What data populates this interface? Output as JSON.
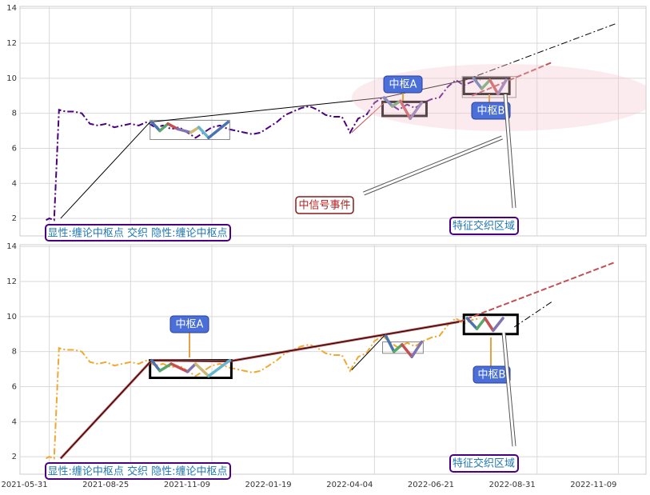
{
  "chart_data": [
    {
      "type": "line",
      "x": [
        -2,
        0,
        3,
        6,
        10,
        15,
        20,
        25,
        30,
        35,
        40,
        45,
        50,
        55,
        60,
        65,
        70,
        75,
        80,
        85,
        90,
        95,
        100,
        105,
        110,
        115,
        120,
        125,
        130,
        135,
        140,
        145,
        150,
        155,
        160,
        165,
        170,
        175,
        180,
        185,
        190,
        195,
        200,
        205,
        210,
        215,
        220,
        225,
        230,
        235,
        240,
        245,
        250,
        255,
        260,
        265
      ],
      "series": [
        {
          "color": "#4b0082",
          "dash": "dashdot",
          "values": [
            1.9,
            2.0,
            1.9,
            8.2,
            8.1,
            8.1,
            8.0,
            7.4,
            7.3,
            7.4,
            7.2,
            7.3,
            7.4,
            7.3,
            7.5,
            7.2,
            7.3,
            7.1,
            7.2,
            6.9,
            6.6,
            6.9,
            7.2,
            7.3,
            7.1,
            7.0,
            6.9,
            6.8,
            6.9,
            7.2,
            7.5,
            7.9,
            8.1,
            8.3,
            8.4,
            8.2,
            7.9,
            7.8,
            7.8,
            6.9,
            7.7,
            7.9,
            8.6,
            8.9,
            8.5,
            8.2,
            8.5,
            8.3,
            8.6,
            8.8,
            8.9,
            9.5,
            9.9,
            9.6,
            9.8,
            9.9
          ]
        }
      ],
      "xlim": [
        -18,
        367
      ],
      "xticks": [
        0,
        50,
        100,
        150,
        200,
        250,
        300,
        350
      ],
      "ylim": [
        1,
        14.1
      ],
      "yticks": [
        2,
        4,
        6,
        8,
        10,
        12,
        14
      ],
      "grid": true,
      "strokes": [
        {
          "x": [
            7,
            62,
            206,
            256
          ],
          "values": [
            2.0,
            7.5,
            8.9,
            9.9
          ],
          "color": "#000000",
          "width": 1,
          "dash": "solid"
        },
        {
          "x": [
            256,
            348
          ],
          "values": [
            9.9,
            13.1
          ],
          "color": "#000000",
          "width": 1,
          "dash": "dashdot"
        },
        {
          "x": [
            260,
            309
          ],
          "values": [
            9.0,
            10.9
          ],
          "color": "#c44e52",
          "width": 2,
          "dash": "dashed"
        },
        {
          "x": [
            186,
            206
          ],
          "values": [
            6.9,
            8.6
          ],
          "color": "#c44e52",
          "width": 1,
          "dash": "solid"
        }
      ],
      "zigzags": [
        {
          "x": [
            63,
            68,
            73,
            79,
            87,
            92,
            98,
            110
          ],
          "values": [
            7.5,
            7.0,
            7.4,
            7.1,
            6.9,
            7.2,
            6.6,
            7.5
          ]
        },
        {
          "x": [
            206,
            211,
            216,
            222,
            229
          ],
          "values": [
            8.9,
            8.4,
            8.7,
            7.7,
            8.6
          ]
        },
        {
          "x": [
            261,
            266,
            271,
            276,
            281
          ],
          "values": [
            10.0,
            9.4,
            9.9,
            9.1,
            9.9
          ]
        }
      ],
      "zigzag_colors": [
        "#4c72b0",
        "#55a868",
        "#c44e52",
        "#8172b2",
        "#ccb974",
        "#64b5cd"
      ],
      "boxes": [
        {
          "x": [
            62,
            111
          ],
          "y": [
            6.5,
            7.6
          ],
          "color": "#888888",
          "width": 1
        },
        {
          "x": [
            205,
            232
          ],
          "y": [
            7.85,
            8.65
          ],
          "color": "#000000",
          "width": 3
        },
        {
          "x": [
            254,
            287
          ],
          "y": [
            8.9,
            10.1
          ],
          "color": "#888888",
          "width": 1
        },
        {
          "x": [
            255,
            283
          ],
          "y": [
            9.1,
            10.0
          ],
          "color": "#000000",
          "width": 3
        }
      ],
      "annotations": [
        "中枢A",
        "中枢B",
        "中信号事件",
        "特征交织区域",
        "显性:缠论中枢点 交织 隐性:缠论中枢点"
      ]
    },
    {
      "type": "line",
      "x": [
        -2,
        0,
        3,
        6,
        10,
        15,
        20,
        25,
        30,
        35,
        40,
        45,
        50,
        55,
        60,
        65,
        70,
        75,
        80,
        85,
        90,
        95,
        100,
        105,
        110,
        115,
        120,
        125,
        130,
        135,
        140,
        145,
        150,
        155,
        160,
        165,
        170,
        175,
        180,
        185,
        190,
        195,
        200,
        205,
        210,
        215,
        220,
        225,
        230,
        235,
        240,
        245,
        250,
        255,
        260,
        265
      ],
      "series": [
        {
          "color": "#f0a830",
          "dash": "dashdot",
          "values": [
            1.9,
            2.0,
            1.9,
            8.2,
            8.1,
            8.1,
            8.0,
            7.4,
            7.3,
            7.4,
            7.2,
            7.3,
            7.4,
            7.3,
            7.5,
            7.2,
            7.3,
            7.1,
            7.2,
            6.9,
            6.6,
            6.9,
            7.2,
            7.3,
            7.1,
            7.0,
            6.9,
            6.8,
            6.9,
            7.2,
            7.5,
            7.9,
            8.1,
            8.3,
            8.4,
            8.2,
            7.9,
            7.8,
            7.8,
            6.9,
            7.7,
            7.9,
            8.6,
            8.9,
            8.5,
            8.2,
            8.5,
            8.3,
            8.6,
            8.8,
            8.9,
            9.5,
            9.9,
            9.6,
            9.8,
            9.9
          ]
        }
      ],
      "xlim": [
        -18,
        367
      ],
      "xticks": [
        {
          "value": 0,
          "label": "2021-05-31"
        },
        {
          "value": 50,
          "label": "2021-08-25"
        },
        {
          "value": 100,
          "label": "2021-11-09"
        },
        {
          "value": 150,
          "label": "2022-01-19"
        },
        {
          "value": 200,
          "label": "2022-04-04"
        },
        {
          "value": 250,
          "label": "2022-06-21"
        },
        {
          "value": 300,
          "label": "2022-08-31"
        },
        {
          "value": 350,
          "label": "2022-11-09"
        }
      ],
      "ylim": [
        1,
        14.1
      ],
      "yticks": [
        2,
        4,
        6,
        8,
        10,
        12,
        14
      ],
      "grid": true,
      "strokes": [
        {
          "x": [
            7,
            63,
            111,
            252
          ],
          "values": [
            1.9,
            7.5,
            7.45,
            9.7
          ],
          "color": "#c44e52",
          "width": 3,
          "dash": "solid"
        },
        {
          "x": [
            7,
            63,
            111,
            252
          ],
          "values": [
            1.9,
            7.5,
            7.45,
            9.7
          ],
          "color": "#000000",
          "width": 1,
          "dash": "solid"
        },
        {
          "x": [
            252,
            348
          ],
          "values": [
            9.7,
            13.1
          ],
          "color": "#c44e52",
          "width": 2,
          "dash": "dashed"
        },
        {
          "x": [
            286,
            310
          ],
          "values": [
            9.4,
            10.9
          ],
          "color": "#000000",
          "width": 1,
          "dash": "dashdot"
        },
        {
          "x": [
            186,
            206
          ],
          "values": [
            6.95,
            8.9
          ],
          "color": "#000000",
          "width": 1,
          "dash": "solid"
        }
      ],
      "zigzags": [
        {
          "x": [
            63,
            68,
            75,
            85,
            90,
            98,
            111
          ],
          "values": [
            7.5,
            6.9,
            7.3,
            6.85,
            7.3,
            6.6,
            7.5
          ]
        },
        {
          "x": [
            207,
            212,
            217,
            223,
            229
          ],
          "values": [
            8.9,
            8.0,
            8.4,
            7.7,
            8.55
          ]
        },
        {
          "x": [
            257,
            263,
            268,
            273,
            279
          ],
          "values": [
            9.9,
            9.3,
            9.9,
            9.2,
            9.9
          ]
        }
      ],
      "zigzag_colors": [
        "#4c72b0",
        "#55a868",
        "#c44e52",
        "#8172b2",
        "#ccb974",
        "#64b5cd"
      ],
      "boxes": [
        {
          "x": [
            62,
            112
          ],
          "y": [
            6.5,
            7.5
          ],
          "color": "#000000",
          "width": 3
        },
        {
          "x": [
            205,
            230
          ],
          "y": [
            7.9,
            8.55
          ],
          "color": "#888888",
          "width": 1
        },
        {
          "x": [
            255,
            288
          ],
          "y": [
            9.0,
            10.1
          ],
          "color": "#000000",
          "width": 3
        }
      ],
      "annotations": [
        "中枢A",
        "中枢B",
        "特征交织区域",
        "显性:缠论中枢点 交织 隐性:缠论中枢点"
      ]
    }
  ]
}
